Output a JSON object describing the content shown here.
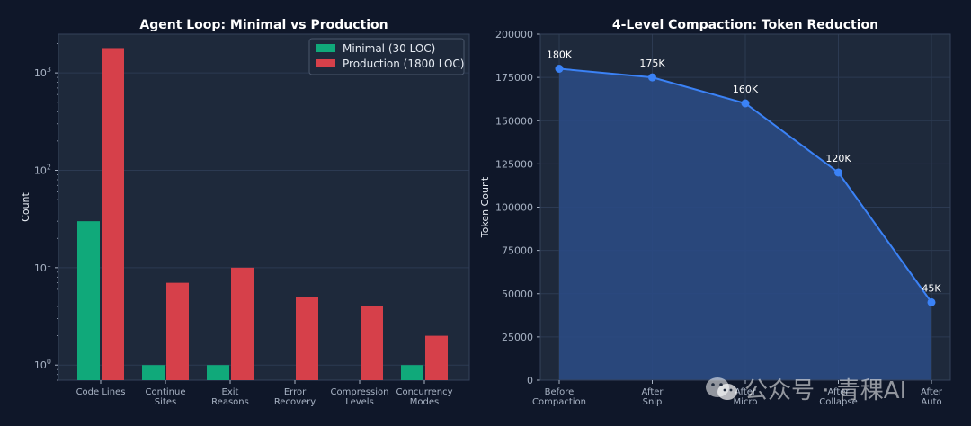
{
  "watermark": {
    "text": "公众号 · 青稞AI",
    "icon": "wechat-icon"
  },
  "colors": {
    "background": "#0f1729",
    "panel": "#1e293b",
    "minimal": "#10a97a",
    "production": "#d6404a",
    "line": "#3b82f6",
    "area": "#2a4a83"
  },
  "chart_data": [
    {
      "type": "bar",
      "title": "Agent Loop: Minimal vs Production",
      "xlabel": "",
      "ylabel": "Count",
      "yscale": "log",
      "ylim": [
        0.7,
        2500
      ],
      "yticks": [
        {
          "value": 1,
          "base": "10",
          "exp": "0"
        },
        {
          "value": 10,
          "base": "10",
          "exp": "1"
        },
        {
          "value": 100,
          "base": "10",
          "exp": "2"
        },
        {
          "value": 1000,
          "base": "10",
          "exp": "3"
        }
      ],
      "categories": [
        [
          "Code Lines"
        ],
        [
          "Continue",
          "Sites"
        ],
        [
          "Exit",
          "Reasons"
        ],
        [
          "Error",
          "Recovery"
        ],
        [
          "Compression",
          "Levels"
        ],
        [
          "Concurrency",
          "Modes"
        ]
      ],
      "series": [
        {
          "name": "Minimal (30 LOC)",
          "values": [
            30,
            1,
            1,
            0,
            0,
            1
          ]
        },
        {
          "name": "Production (1800 LOC)",
          "values": [
            1800,
            7,
            10,
            5,
            4,
            2
          ]
        }
      ],
      "legend": "top-right",
      "grid": true
    },
    {
      "type": "area",
      "title": "4-Level Compaction: Token Reduction",
      "xlabel": "",
      "ylabel": "Token Count",
      "ylim": [
        0,
        200000
      ],
      "yticks": [
        0,
        25000,
        50000,
        75000,
        100000,
        125000,
        150000,
        175000,
        200000
      ],
      "categories": [
        [
          "Before",
          "Compaction"
        ],
        [
          "After",
          "Snip"
        ],
        [
          "After",
          "Micro"
        ],
        [
          "After",
          "Collapse"
        ],
        [
          "After",
          "Auto"
        ]
      ],
      "values": [
        180000,
        175000,
        160000,
        120000,
        45000
      ],
      "annotations": [
        "180K",
        "175K",
        "160K",
        "120K",
        "45K"
      ],
      "grid": true
    }
  ]
}
